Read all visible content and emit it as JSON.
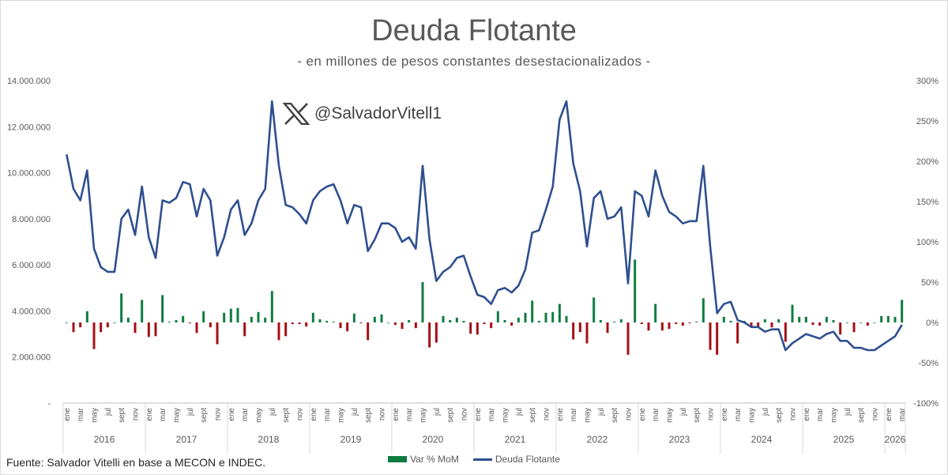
{
  "title": "Deuda Flotante",
  "subtitle": "- en millones de pesos constantes desestacionalizados -",
  "handle": "@SalvadorVitell1",
  "source": "Fuente: Salvador Vitelli en base a MECON e INDEC.",
  "colors": {
    "bars_positive": "#107c41",
    "bars_negative": "#a50f15",
    "line": "#2f4f8f",
    "text": "#595959"
  },
  "icons": {
    "logo": "x-logo-icon"
  },
  "chart_data": {
    "type": "line+bar",
    "y_left": {
      "ticks": [
        "-",
        "2.000.000",
        "4.000.000",
        "6.000.000",
        "8.000.000",
        "10.000.000",
        "12.000.000",
        "14.000.000"
      ],
      "ylim": [
        0,
        14000000
      ]
    },
    "y_right": {
      "ticks": [
        "-100%",
        "-50%",
        "0%",
        "50%",
        "100%",
        "150%",
        "200%",
        "250%",
        "300%"
      ],
      "ylim": [
        -100,
        300
      ]
    },
    "month_tick_labels": [
      "ene",
      "mar",
      "may",
      "jul",
      "sept",
      "nov"
    ],
    "month_tick_labels_2026": [
      "ene",
      "mar"
    ],
    "years": [
      "2016",
      "2017",
      "2018",
      "2019",
      "2020",
      "2021",
      "2022",
      "2023",
      "2024",
      "2025",
      "2026"
    ],
    "start": "2016-01",
    "series": [
      {
        "name": "Deuda Flotante",
        "kind": "line",
        "axis": "left",
        "values": [
          10800000,
          9300000,
          8800000,
          10100000,
          6700000,
          5900000,
          5700000,
          5700000,
          8000000,
          8400000,
          7300000,
          9400000,
          7200000,
          6300000,
          8800000,
          8700000,
          8900000,
          9600000,
          9500000,
          8100000,
          9300000,
          8800000,
          6400000,
          7200000,
          8400000,
          8800000,
          7300000,
          7800000,
          8800000,
          9300000,
          13100000,
          10300000,
          8600000,
          8500000,
          8200000,
          7800000,
          8800000,
          9200000,
          9400000,
          9500000,
          8800000,
          7800000,
          8600000,
          8500000,
          6600000,
          7100000,
          7800000,
          7800000,
          7600000,
          7000000,
          7200000,
          6700000,
          10300000,
          7100000,
          5300000,
          5700000,
          5900000,
          6300000,
          6400000,
          5500000,
          4700000,
          4600000,
          4300000,
          4900000,
          5000000,
          4800000,
          5100000,
          5800000,
          7400000,
          7500000,
          8400000,
          9400000,
          12300000,
          13100000,
          10400000,
          9200000,
          6800000,
          8900000,
          9200000,
          8000000,
          8100000,
          8500000,
          5200000,
          9200000,
          9000000,
          8100000,
          10100000,
          9000000,
          8300000,
          8100000,
          7800000,
          7900000,
          7900000,
          10300000,
          6800000,
          3900000,
          4300000,
          4400000,
          3600000,
          3500000,
          3300000,
          3300000,
          3100000,
          3200000,
          3200000,
          2300000,
          2600000,
          2800000,
          3000000,
          2900000,
          2800000,
          3000000,
          3100000,
          2700000,
          2700000,
          2400000,
          2400000,
          2300000,
          2300000,
          2500000,
          2700000,
          2900000,
          3400000
        ]
      },
      {
        "name": "Var % MoM",
        "kind": "bar",
        "axis": "right",
        "values": [
          0,
          -12,
          -6,
          14,
          -33,
          -12,
          -6,
          0,
          36,
          6,
          -13,
          28,
          -18,
          -17,
          34,
          1,
          3,
          8,
          -1,
          -13,
          14,
          -6,
          -27,
          12,
          17,
          18,
          -17,
          7,
          13,
          6,
          39,
          -22,
          -17,
          -2,
          -2,
          -5,
          12,
          4,
          2,
          1,
          -7,
          -11,
          11,
          -1,
          -22,
          7,
          10,
          0,
          -3,
          -8,
          3,
          -7,
          50,
          -31,
          -25,
          8,
          3,
          6,
          2,
          -14,
          -15,
          -2,
          -7,
          14,
          3,
          -4,
          6,
          12,
          27,
          2,
          12,
          13,
          23,
          8,
          -21,
          -12,
          -26,
          31,
          3,
          -13,
          1,
          4,
          -40,
          78,
          -2,
          -10,
          23,
          -10,
          -8,
          -2,
          -4,
          -1,
          1,
          30,
          -34,
          -40,
          7,
          2,
          -26,
          2,
          -5,
          -6,
          4,
          -6,
          4,
          -24,
          22,
          7,
          7,
          -3,
          -4,
          7,
          3,
          -15,
          0,
          -12,
          0,
          -4,
          0,
          8,
          8,
          7,
          28
        ]
      }
    ]
  }
}
